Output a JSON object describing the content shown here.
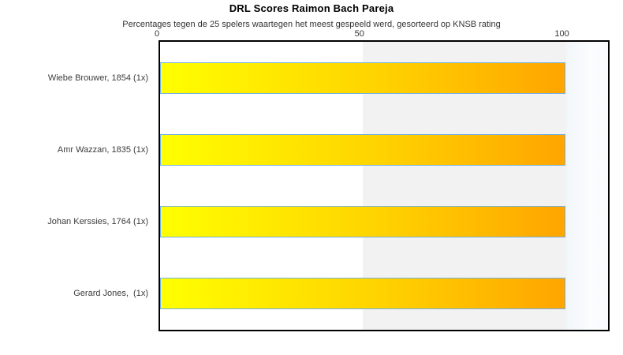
{
  "chart_data": {
    "type": "bar",
    "orientation": "horizontal",
    "title": "DRL Scores Raimon Bach Pareja",
    "subtitle": "Percentages tegen de 25 spelers waartegen het meest gespeeld werd, gesorteerd op KNSB rating",
    "categories": [
      "Wiebe Brouwer, 1854 (1x)",
      "Amr Wazzan, 1835 (1x)",
      "Johan Kerssies, 1764 (1x)",
      "Gerard Jones,  (1x)"
    ],
    "values": [
      100,
      100,
      100,
      100
    ],
    "x_ticks": [
      0,
      50,
      100
    ],
    "xlim": [
      0,
      110.6
    ],
    "grid": false,
    "legend": "none",
    "bands": [
      {
        "from": 50,
        "to": 100,
        "style": "gray"
      },
      {
        "from": 100,
        "to": 110.6,
        "style": "fadeblue"
      }
    ],
    "colors": {
      "bar_gradient_start": "#ffff00",
      "bar_gradient_mid": "#ffd200",
      "bar_gradient_end": "#ffa500",
      "bar_border": "#74b1e1",
      "band_gray": "#f2f2f2",
      "plot_border": "#000000",
      "text": "#333333"
    }
  }
}
